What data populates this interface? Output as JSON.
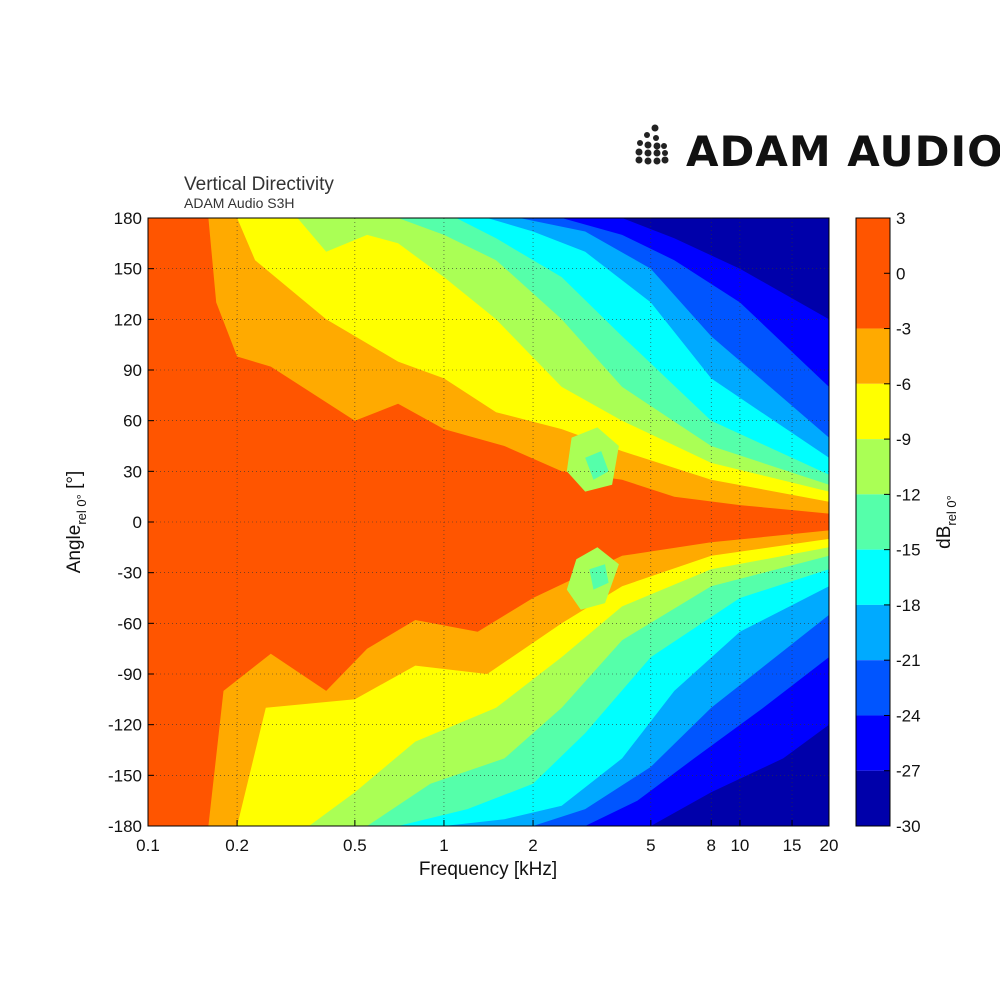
{
  "brand": {
    "name": "ADAM AUDIO",
    "logo_icon": "adam-dot-logo-icon"
  },
  "chart_data": {
    "type": "heatmap",
    "title": "Vertical Directivity",
    "subtitle": "ADAM Audio S3H",
    "xlabel": "Frequency [kHz]",
    "ylabel_main": "Angle",
    "ylabel_sub": "rel 0°",
    "ylabel_unit": " [°]",
    "colorbar_label_main": "dB",
    "colorbar_label_sub": "rel 0°",
    "x_scale": "log",
    "xlim": [
      0.1,
      20
    ],
    "ylim": [
      -180,
      180
    ],
    "x_ticks": [
      {
        "value": 0.1,
        "label": "0.1"
      },
      {
        "value": 0.2,
        "label": "0.2"
      },
      {
        "value": 0.5,
        "label": "0.5"
      },
      {
        "value": 1,
        "label": "1"
      },
      {
        "value": 2,
        "label": "2"
      },
      {
        "value": 5,
        "label": "5"
      },
      {
        "value": 8,
        "label": "8"
      },
      {
        "value": 10,
        "label": "10"
      },
      {
        "value": 15,
        "label": "15"
      },
      {
        "value": 20,
        "label": "20"
      }
    ],
    "y_ticks": [
      180,
      150,
      120,
      90,
      60,
      30,
      0,
      -30,
      -60,
      -90,
      -120,
      -150,
      -180
    ],
    "colorbar_ticks": [
      3,
      0,
      -3,
      -6,
      -9,
      -12,
      -15,
      -18,
      -21,
      -24,
      -27,
      -30
    ],
    "grid": true,
    "levels": [
      {
        "min": -3,
        "max": 3,
        "color": "#ff5500"
      },
      {
        "min": -6,
        "max": -3,
        "color": "#ffaa00"
      },
      {
        "min": -9,
        "max": -6,
        "color": "#ffff00"
      },
      {
        "min": -12,
        "max": -9,
        "color": "#aaff55"
      },
      {
        "min": -15,
        "max": -12,
        "color": "#55ffaa"
      },
      {
        "min": -18,
        "max": -15,
        "color": "#00ffff"
      },
      {
        "min": -21,
        "max": -18,
        "color": "#00aaff"
      },
      {
        "min": -24,
        "max": -21,
        "color": "#0055ff"
      },
      {
        "min": -27,
        "max": -24,
        "color": "#0000ff"
      },
      {
        "min": -30,
        "max": -27,
        "color": "#0000aa"
      }
    ],
    "contours": [
      {
        "level": -3,
        "upper": [
          [
            0.1,
            180
          ],
          [
            0.16,
            180
          ],
          [
            0.17,
            130
          ],
          [
            0.2,
            98
          ],
          [
            0.26,
            92
          ],
          [
            0.5,
            60
          ],
          [
            0.7,
            70
          ],
          [
            1,
            55
          ],
          [
            1.6,
            45
          ],
          [
            2.5,
            30
          ],
          [
            4,
            25
          ],
          [
            6,
            15
          ],
          [
            10,
            10
          ],
          [
            20,
            5
          ]
        ],
        "lower": [
          [
            0.1,
            -180
          ],
          [
            0.16,
            -180
          ],
          [
            0.18,
            -100
          ],
          [
            0.26,
            -78
          ],
          [
            0.4,
            -100
          ],
          [
            0.55,
            -75
          ],
          [
            0.8,
            -58
          ],
          [
            1.3,
            -65
          ],
          [
            2,
            -45
          ],
          [
            4,
            -20
          ],
          [
            8,
            -12
          ],
          [
            20,
            -5
          ]
        ]
      },
      {
        "level": -6,
        "upper": [
          [
            0.1,
            180
          ],
          [
            0.2,
            180
          ],
          [
            0.23,
            155
          ],
          [
            0.4,
            120
          ],
          [
            0.7,
            95
          ],
          [
            1,
            85
          ],
          [
            1.5,
            65
          ],
          [
            2.5,
            55
          ],
          [
            4,
            42
          ],
          [
            8,
            25
          ],
          [
            20,
            12
          ]
        ],
        "lower": [
          [
            0.1,
            -180
          ],
          [
            0.2,
            -180
          ],
          [
            0.25,
            -110
          ],
          [
            0.5,
            -105
          ],
          [
            0.8,
            -85
          ],
          [
            1.4,
            -90
          ],
          [
            2.5,
            -60
          ],
          [
            4,
            -38
          ],
          [
            8,
            -20
          ],
          [
            20,
            -10
          ]
        ]
      },
      {
        "level": -9,
        "upper": [
          [
            0.1,
            180
          ],
          [
            0.32,
            180
          ],
          [
            0.4,
            160
          ],
          [
            0.55,
            170
          ],
          [
            0.7,
            165
          ],
          [
            1,
            145
          ],
          [
            1.5,
            120
          ],
          [
            2.5,
            80
          ],
          [
            4,
            60
          ],
          [
            8,
            35
          ],
          [
            20,
            18
          ]
        ],
        "lower": [
          [
            0.1,
            -180
          ],
          [
            0.35,
            -180
          ],
          [
            0.5,
            -160
          ],
          [
            0.8,
            -130
          ],
          [
            1.5,
            -110
          ],
          [
            2.5,
            -80
          ],
          [
            4,
            -50
          ],
          [
            8,
            -28
          ],
          [
            20,
            -15
          ]
        ]
      },
      {
        "level": -12,
        "upper": [
          [
            0.1,
            180
          ],
          [
            0.7,
            180
          ],
          [
            1,
            170
          ],
          [
            1.5,
            155
          ],
          [
            2.5,
            120
          ],
          [
            4,
            80
          ],
          [
            8,
            45
          ],
          [
            20,
            22
          ]
        ],
        "lower": [
          [
            0.1,
            -180
          ],
          [
            0.55,
            -180
          ],
          [
            0.9,
            -155
          ],
          [
            1.6,
            -140
          ],
          [
            2.5,
            -110
          ],
          [
            4,
            -70
          ],
          [
            8,
            -38
          ],
          [
            20,
            -20
          ]
        ]
      },
      {
        "level": -15,
        "upper": [
          [
            0.1,
            180
          ],
          [
            1.1,
            180
          ],
          [
            1.5,
            168
          ],
          [
            2.5,
            145
          ],
          [
            4,
            110
          ],
          [
            8,
            60
          ],
          [
            20,
            28
          ]
        ],
        "lower": [
          [
            0.1,
            -180
          ],
          [
            0.7,
            -180
          ],
          [
            1.2,
            -170
          ],
          [
            2,
            -155
          ],
          [
            3,
            -125
          ],
          [
            5,
            -80
          ],
          [
            10,
            -45
          ],
          [
            20,
            -28
          ]
        ]
      },
      {
        "level": -18,
        "upper": [
          [
            0.1,
            180
          ],
          [
            1.4,
            180
          ],
          [
            2,
            172
          ],
          [
            3,
            160
          ],
          [
            5,
            130
          ],
          [
            8,
            85
          ],
          [
            20,
            38
          ]
        ],
        "lower": [
          [
            0.1,
            -180
          ],
          [
            1.0,
            -180
          ],
          [
            1.6,
            -176
          ],
          [
            2.5,
            -168
          ],
          [
            4,
            -140
          ],
          [
            6,
            -100
          ],
          [
            10,
            -65
          ],
          [
            20,
            -38
          ]
        ]
      },
      {
        "level": -21,
        "upper": [
          [
            0.1,
            180
          ],
          [
            1.8,
            180
          ],
          [
            3,
            172
          ],
          [
            5,
            150
          ],
          [
            8,
            110
          ],
          [
            20,
            50
          ]
        ],
        "lower": [
          [
            0.1,
            -180
          ],
          [
            2,
            -180
          ],
          [
            3,
            -170
          ],
          [
            5,
            -145
          ],
          [
            8,
            -110
          ],
          [
            20,
            -55
          ]
        ]
      },
      {
        "level": -24,
        "upper": [
          [
            0.1,
            180
          ],
          [
            2.5,
            180
          ],
          [
            4,
            170
          ],
          [
            6,
            155
          ],
          [
            10,
            130
          ],
          [
            20,
            80
          ]
        ],
        "lower": [
          [
            0.1,
            -180
          ],
          [
            3,
            -180
          ],
          [
            4.5,
            -165
          ],
          [
            7,
            -140
          ],
          [
            12,
            -110
          ],
          [
            20,
            -80
          ]
        ]
      },
      {
        "level": -27,
        "upper": [
          [
            0.1,
            180
          ],
          [
            4,
            180
          ],
          [
            6,
            168
          ],
          [
            10,
            150
          ],
          [
            20,
            120
          ]
        ],
        "lower": [
          [
            0.1,
            -180
          ],
          [
            5,
            -180
          ],
          [
            8,
            -160
          ],
          [
            14,
            -140
          ],
          [
            20,
            -120
          ]
        ]
      }
    ],
    "islands": [
      {
        "level": -9,
        "points": [
          [
            2.7,
            50
          ],
          [
            3.3,
            56
          ],
          [
            3.9,
            45
          ],
          [
            3.7,
            22
          ],
          [
            3.0,
            18
          ],
          [
            2.6,
            30
          ]
        ]
      },
      {
        "level": -12,
        "points": [
          [
            3.0,
            38
          ],
          [
            3.4,
            42
          ],
          [
            3.6,
            30
          ],
          [
            3.2,
            25
          ]
        ]
      },
      {
        "level": -9,
        "points": [
          [
            2.8,
            -22
          ],
          [
            3.3,
            -15
          ],
          [
            3.9,
            -25
          ],
          [
            3.5,
            -48
          ],
          [
            2.9,
            -52
          ],
          [
            2.6,
            -40
          ]
        ]
      },
      {
        "level": -12,
        "points": [
          [
            3.1,
            -28
          ],
          [
            3.5,
            -25
          ],
          [
            3.6,
            -36
          ],
          [
            3.2,
            -40
          ]
        ]
      }
    ]
  }
}
